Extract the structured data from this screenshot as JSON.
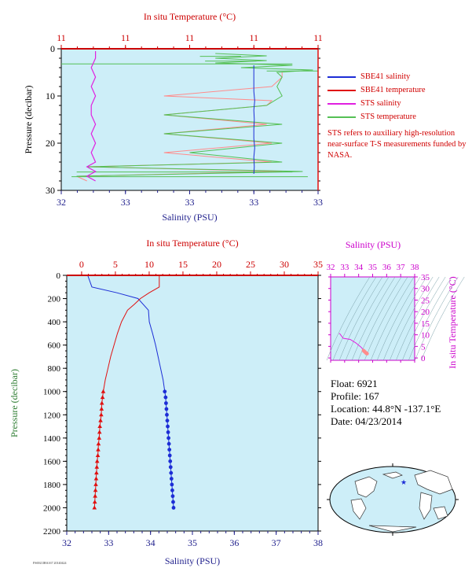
{
  "colors": {
    "panel_bg": "#cdeef8",
    "salinity": "#1c2dd6",
    "temperature": "#e01010",
    "sts_salinity": "#e020e0",
    "sts_temperature": "#55c055",
    "sts_temperature_alt": "#ff8c8c",
    "axis_red": "#cc0000",
    "axis_navy": "#1f1f8c",
    "axis_green": "#2e7d32",
    "axis_magenta": "#cc00cc",
    "map_land": "#ffffff",
    "map_ocean": "#cdeef8"
  },
  "legend": [
    {
      "label": "SBE41 salinity",
      "color": "#1c2dd6"
    },
    {
      "label": "SBE41 temperature",
      "color": "#e01010"
    },
    {
      "label": "STS salinity",
      "color": "#e020e0"
    },
    {
      "label": "STS temperature",
      "color": "#55c055"
    }
  ],
  "note": "STS refers to auxiliary high-resolution near-surface T-S measurements funded by NASA.",
  "float_info": {
    "float_line": "Float:  6921",
    "profile_line": "Profile:  167",
    "location_line": "Location:  44.8°N  -137.1°E",
    "date_line": "Date:  04/23/2014"
  },
  "stamp_text": "FS6921IHA167 20140424",
  "chart_data": [
    {
      "id": "near_surface",
      "type": "line",
      "title_top": "In situ Temperature (°C)",
      "top_tick_labels": [
        "11",
        "11",
        "11",
        "11",
        "11"
      ],
      "top_range": [
        10.55,
        11.05
      ],
      "xlabel": "Salinity (PSU)",
      "bottom_tick_labels": [
        "32",
        "33",
        "33",
        "33",
        "33"
      ],
      "bottom_range": [
        32.6,
        33.2
      ],
      "ylabel": "Pressure (decibar)",
      "yticks": [
        0,
        10,
        20,
        30
      ],
      "ylim": [
        0,
        30
      ],
      "inverted_y": true,
      "series": [
        {
          "name": "SBE41 salinity",
          "axis": "bottom",
          "y": [
            3.5,
            5,
            7,
            9,
            11,
            13,
            15,
            17,
            19,
            21,
            23,
            25,
            26.5
          ],
          "x": [
            33.05,
            33.05,
            33.05,
            33.05,
            33.052,
            33.05,
            33.051,
            33.05,
            33.05,
            33.052,
            33.05,
            33.051,
            33.05
          ]
        },
        {
          "name": "SBE41 temperature",
          "axis": "top",
          "y": [
            0,
            30
          ],
          "x": [
            11.05,
            11.05
          ]
        },
        {
          "name": "STS salinity",
          "axis": "bottom",
          "y": [
            0.5,
            2,
            4,
            6,
            8,
            10,
            12,
            14,
            16,
            18,
            20,
            22,
            24,
            25,
            26,
            27,
            28
          ],
          "x": [
            32.68,
            32.68,
            32.67,
            32.68,
            32.67,
            32.68,
            32.67,
            32.67,
            32.68,
            32.67,
            32.68,
            32.67,
            32.68,
            32.66,
            32.68,
            32.66,
            32.68
          ]
        },
        {
          "name": "STS temperature",
          "axis": "top",
          "y": [
            1,
            1.5,
            2,
            2.5,
            3,
            3.5,
            4,
            4.5,
            5,
            6,
            8,
            10,
            12,
            14,
            16,
            18,
            20,
            22,
            24,
            25,
            26,
            27
          ],
          "x": [
            10.85,
            10.95,
            10.85,
            10.95,
            10.85,
            11.0,
            10.9,
            11.04,
            10.97,
            10.98,
            10.97,
            10.98,
            10.95,
            10.75,
            10.98,
            10.75,
            10.98,
            10.8,
            10.98,
            10.6,
            11.02,
            10.58
          ]
        },
        {
          "name": "STS temperature (alt)",
          "axis": "top",
          "y": [
            5,
            6,
            8,
            10,
            11,
            12,
            14,
            16,
            18,
            20,
            22,
            24,
            25,
            26,
            27,
            28
          ],
          "x": [
            10.98,
            10.98,
            10.96,
            10.75,
            10.96,
            10.95,
            10.75,
            10.95,
            10.75,
            10.96,
            10.75,
            10.96,
            10.6,
            10.98,
            10.58,
            10.6
          ]
        }
      ]
    },
    {
      "id": "full_profile",
      "type": "line",
      "title_top": "In situ Temperature (°C)",
      "top_ticks": [
        0,
        5,
        10,
        15,
        20,
        25,
        30,
        35
      ],
      "top_range": [
        -2.2,
        35
      ],
      "xlabel": "Salinity (PSU)",
      "bottom_ticks": [
        32,
        33,
        34,
        35,
        36,
        37,
        38
      ],
      "bottom_range": [
        32,
        38
      ],
      "ylabel": "Pressure (decibar)",
      "yticks": [
        0,
        200,
        400,
        600,
        800,
        1000,
        1200,
        1400,
        1600,
        1800,
        2000,
        2200
      ],
      "ylim": [
        0,
        2200
      ],
      "inverted_y": true,
      "series": [
        {
          "name": "SBE41 salinity",
          "axis": "bottom",
          "y": [
            0,
            100,
            150,
            200,
            300,
            400,
            500,
            600,
            700,
            800,
            900,
            1000
          ],
          "x": [
            32.5,
            32.6,
            33.2,
            33.7,
            33.95,
            33.97,
            34.05,
            34.12,
            34.18,
            34.24,
            34.3,
            34.34
          ]
        },
        {
          "name": "SBE41 temperature",
          "axis": "top",
          "y": [
            0,
            100,
            150,
            200,
            250,
            300,
            400,
            500,
            600,
            700,
            800,
            900,
            1000
          ],
          "x": [
            11.5,
            11.5,
            10.0,
            8.7,
            7.8,
            6.8,
            5.9,
            5.3,
            4.8,
            4.3,
            3.9,
            3.5,
            3.2
          ]
        },
        {
          "name": "SBE41 salinity (deep points)",
          "axis": "bottom",
          "y": [
            1000,
            1050,
            1100,
            1150,
            1200,
            1250,
            1300,
            1350,
            1400,
            1450,
            1500,
            1550,
            1600,
            1650,
            1700,
            1750,
            1800,
            1850,
            1900,
            1950,
            2000
          ],
          "x": [
            34.34,
            34.36,
            34.37,
            34.38,
            34.39,
            34.4,
            34.41,
            34.42,
            34.43,
            34.44,
            34.45,
            34.46,
            34.47,
            34.48,
            34.49,
            34.5,
            34.51,
            34.52,
            34.53,
            34.54,
            34.55
          ]
        },
        {
          "name": "SBE41 temperature (deep points)",
          "axis": "top",
          "y": [
            1000,
            1050,
            1100,
            1150,
            1200,
            1250,
            1300,
            1350,
            1400,
            1450,
            1500,
            1550,
            1600,
            1650,
            1700,
            1750,
            1800,
            1850,
            1900,
            1950,
            2000
          ],
          "x": [
            3.2,
            3.1,
            3.0,
            2.95,
            2.9,
            2.8,
            2.7,
            2.65,
            2.6,
            2.5,
            2.45,
            2.4,
            2.3,
            2.25,
            2.2,
            2.15,
            2.1,
            2.05,
            2.0,
            1.95,
            1.9
          ]
        }
      ]
    },
    {
      "id": "ts_diagram",
      "type": "line",
      "title_top": "Salinity (PSU)",
      "top_ticks": [
        32,
        33,
        34,
        35,
        36,
        37,
        38
      ],
      "top_range": [
        32,
        38
      ],
      "ylabel": "In situ Temperature (°C)",
      "yticks": [
        0,
        5,
        10,
        15,
        20,
        25,
        30,
        35
      ],
      "ylim": [
        -1,
        35
      ],
      "series": [
        {
          "name": "T-S curve",
          "x": [
            32.6,
            32.65,
            32.9,
            33.4,
            33.8,
            34.0,
            34.1,
            34.2,
            34.3,
            34.35,
            34.45,
            34.55
          ],
          "y": [
            10.5,
            10.5,
            8.5,
            8.0,
            6.5,
            5.5,
            5.0,
            4.5,
            3.8,
            3.2,
            2.6,
            1.9
          ]
        },
        {
          "name": "T-S deep cluster",
          "x": [
            34.35,
            34.4,
            34.45,
            34.5,
            34.55,
            34.6
          ],
          "y": [
            3.2,
            2.9,
            2.6,
            2.3,
            2.0,
            1.9
          ]
        }
      ]
    }
  ]
}
